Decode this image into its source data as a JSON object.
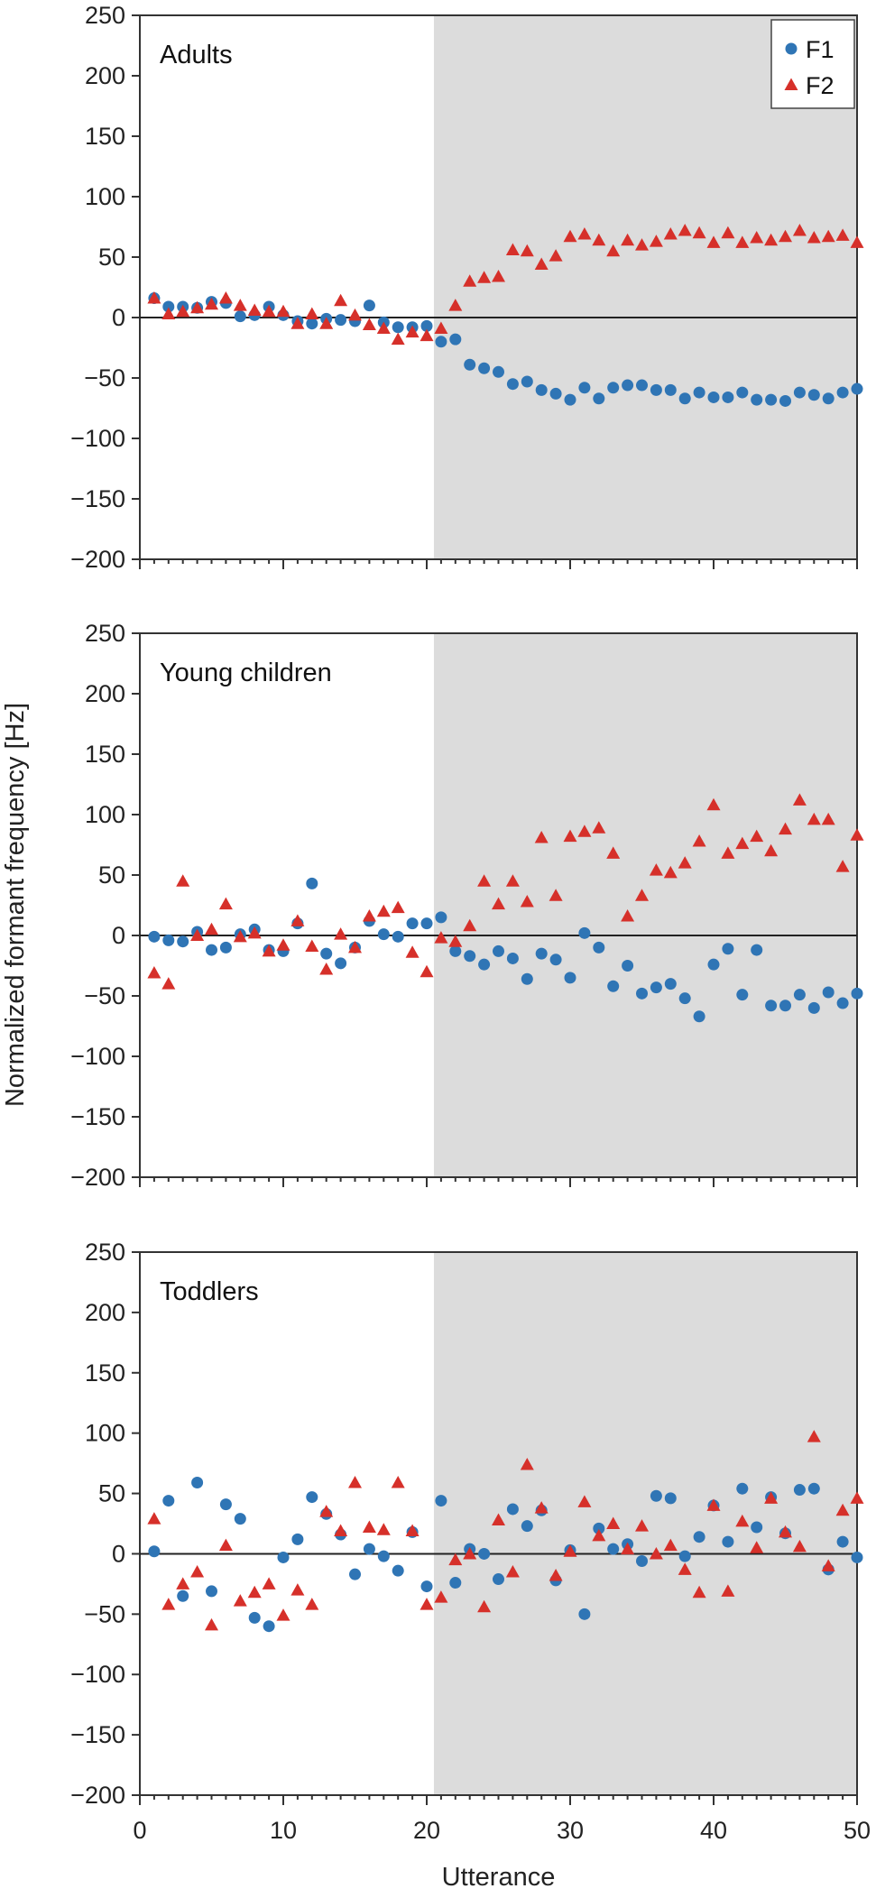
{
  "chart_data": [
    {
      "type": "scatter",
      "title": "Adults",
      "xlim": [
        0,
        50
      ],
      "ylim": [
        -200,
        250
      ],
      "yticks": [
        -200,
        -150,
        -100,
        -50,
        0,
        50,
        100,
        150,
        200,
        250
      ],
      "yticklabels": [
        "−200",
        "−150",
        "−100",
        "−50",
        "0",
        "50",
        "100",
        "150",
        "200",
        "250"
      ],
      "shaded_x_range": [
        20.5,
        50
      ],
      "zero_line": true,
      "legend": {
        "placement": "top-right",
        "entries": [
          "F1",
          "F2"
        ]
      },
      "series": [
        {
          "name": "F1",
          "color": "#2f75b5",
          "marker": "circle",
          "x": [
            1,
            2,
            3,
            4,
            5,
            6,
            7,
            8,
            9,
            10,
            11,
            12,
            13,
            14,
            15,
            16,
            17,
            18,
            19,
            20,
            21,
            22,
            23,
            24,
            25,
            26,
            27,
            28,
            29,
            30,
            31,
            32,
            33,
            34,
            35,
            36,
            37,
            38,
            39,
            40,
            41,
            42,
            43,
            44,
            45,
            46,
            47,
            48,
            49,
            50
          ],
          "y": [
            16,
            9,
            9,
            8,
            13,
            12,
            1,
            2,
            9,
            2,
            -3,
            -5,
            -1,
            -2,
            -3,
            10,
            -4,
            -8,
            -8,
            -7,
            -20,
            -18,
            -39,
            -42,
            -45,
            -55,
            -53,
            -60,
            -63,
            -68,
            -58,
            -67,
            -58,
            -56,
            -56,
            -60,
            -60,
            -67,
            -62,
            -66,
            -66,
            -62,
            -68,
            -68,
            -69,
            -62,
            -64,
            -67,
            -62,
            -59
          ]
        },
        {
          "name": "F2",
          "color": "#d6302a",
          "marker": "triangle",
          "x": [
            1,
            2,
            3,
            4,
            5,
            6,
            7,
            8,
            9,
            10,
            11,
            12,
            13,
            14,
            15,
            16,
            17,
            18,
            19,
            20,
            21,
            22,
            23,
            24,
            25,
            26,
            27,
            28,
            29,
            30,
            31,
            32,
            33,
            34,
            35,
            36,
            37,
            38,
            39,
            40,
            41,
            42,
            43,
            44,
            45,
            46,
            47,
            48,
            49,
            50
          ],
          "y": [
            16,
            3,
            5,
            8,
            11,
            16,
            10,
            6,
            5,
            5,
            -5,
            3,
            -5,
            14,
            2,
            -6,
            -9,
            -18,
            -12,
            -15,
            -9,
            10,
            30,
            33,
            34,
            56,
            55,
            44,
            51,
            67,
            69,
            64,
            55,
            64,
            60,
            63,
            69,
            72,
            70,
            62,
            70,
            62,
            66,
            64,
            67,
            72,
            66,
            67,
            68,
            62
          ]
        }
      ]
    },
    {
      "type": "scatter",
      "title": "Young children",
      "xlim": [
        0,
        50
      ],
      "ylim": [
        -200,
        250
      ],
      "yticks": [
        -200,
        -150,
        -100,
        -50,
        0,
        50,
        100,
        150,
        200,
        250
      ],
      "yticklabels": [
        "−200",
        "−150",
        "−100",
        "−50",
        "0",
        "50",
        "100",
        "150",
        "200",
        "250"
      ],
      "shaded_x_range": [
        20.5,
        50
      ],
      "zero_line": true,
      "ylabel": "Normalized formant frequency [Hz]",
      "series": [
        {
          "name": "F1",
          "color": "#2f75b5",
          "marker": "circle",
          "x": [
            1,
            2,
            3,
            4,
            5,
            6,
            7,
            8,
            9,
            10,
            11,
            12,
            13,
            14,
            15,
            16,
            17,
            18,
            19,
            20,
            21,
            22,
            23,
            24,
            25,
            26,
            27,
            28,
            29,
            30,
            31,
            32,
            33,
            34,
            35,
            36,
            37,
            38,
            39,
            40,
            41,
            42,
            43,
            44,
            45,
            46,
            47,
            48,
            49,
            50
          ],
          "y": [
            -1,
            -4,
            -5,
            3,
            -12,
            -10,
            1,
            5,
            -12,
            -13,
            10,
            43,
            -15,
            -23,
            -10,
            12,
            1,
            -1,
            10,
            10,
            15,
            -13,
            -17,
            -24,
            -13,
            -19,
            -36,
            -15,
            -20,
            -35,
            2,
            -10,
            -42,
            -25,
            -48,
            -43,
            -40,
            -52,
            -67,
            -24,
            -11,
            -49,
            -12,
            -58,
            -58,
            -49,
            -60,
            -47,
            -56,
            -48
          ]
        },
        {
          "name": "F2",
          "color": "#d6302a",
          "marker": "triangle",
          "x": [
            1,
            2,
            3,
            4,
            5,
            6,
            7,
            8,
            9,
            10,
            11,
            12,
            13,
            14,
            15,
            16,
            17,
            18,
            19,
            20,
            21,
            22,
            23,
            24,
            25,
            26,
            27,
            28,
            29,
            30,
            31,
            32,
            33,
            34,
            35,
            36,
            37,
            38,
            39,
            40,
            41,
            42,
            43,
            44,
            45,
            46,
            47,
            48,
            49,
            50
          ],
          "y": [
            -31,
            -40,
            45,
            0,
            5,
            26,
            -1,
            2,
            -13,
            -8,
            12,
            -9,
            -28,
            1,
            -10,
            16,
            20,
            23,
            -14,
            -30,
            -2,
            -5,
            8,
            45,
            26,
            45,
            28,
            81,
            33,
            82,
            86,
            89,
            68,
            16,
            33,
            54,
            52,
            60,
            78,
            108,
            68,
            76,
            82,
            70,
            88,
            112,
            96,
            96,
            57,
            83
          ]
        }
      ]
    },
    {
      "type": "scatter",
      "title": "Toddlers",
      "xlabel": "Utterance",
      "xlim": [
        0,
        50
      ],
      "xticks": [
        0,
        10,
        20,
        30,
        40,
        50
      ],
      "ylim": [
        -200,
        250
      ],
      "yticks": [
        -200,
        -150,
        -100,
        -50,
        0,
        50,
        100,
        150,
        200,
        250
      ],
      "yticklabels": [
        "−200",
        "−150",
        "−100",
        "−50",
        "0",
        "50",
        "100",
        "150",
        "200",
        "250"
      ],
      "shaded_x_range": [
        20.5,
        50
      ],
      "zero_line": true,
      "series": [
        {
          "name": "F1",
          "color": "#2f75b5",
          "marker": "circle",
          "x": [
            1,
            2,
            3,
            4,
            5,
            6,
            7,
            8,
            9,
            10,
            11,
            12,
            13,
            14,
            15,
            16,
            17,
            18,
            19,
            20,
            21,
            22,
            23,
            24,
            25,
            26,
            27,
            28,
            29,
            30,
            31,
            32,
            33,
            34,
            35,
            36,
            37,
            38,
            39,
            40,
            41,
            42,
            43,
            44,
            45,
            46,
            47,
            48,
            49,
            50
          ],
          "y": [
            2,
            44,
            -35,
            59,
            -31,
            41,
            29,
            -53,
            -60,
            -3,
            12,
            47,
            33,
            16,
            -17,
            4,
            -2,
            -14,
            18,
            -27,
            44,
            -24,
            4,
            0,
            -21,
            37,
            23,
            36,
            -22,
            3,
            -50,
            21,
            4,
            8,
            -6,
            48,
            46,
            -2,
            14,
            40,
            10,
            54,
            22,
            47,
            17,
            53,
            54,
            -13,
            10,
            -3
          ]
        },
        {
          "name": "F2",
          "color": "#d6302a",
          "marker": "triangle",
          "x": [
            1,
            2,
            3,
            4,
            5,
            6,
            7,
            8,
            9,
            10,
            11,
            12,
            13,
            14,
            15,
            16,
            17,
            18,
            19,
            20,
            21,
            22,
            23,
            24,
            25,
            26,
            27,
            28,
            29,
            30,
            31,
            32,
            33,
            34,
            35,
            36,
            37,
            38,
            39,
            40,
            41,
            42,
            43,
            44,
            45,
            46,
            47,
            48,
            49,
            50
          ],
          "y": [
            29,
            -42,
            -25,
            -15,
            -59,
            7,
            -39,
            -32,
            -25,
            -51,
            -30,
            -42,
            35,
            19,
            59,
            22,
            20,
            59,
            19,
            -42,
            -36,
            -5,
            0,
            -44,
            28,
            -15,
            74,
            38,
            -18,
            2,
            43,
            15,
            25,
            4,
            23,
            0,
            7,
            -13,
            -32,
            40,
            -31,
            27,
            5,
            46,
            18,
            6,
            97,
            -10,
            36,
            46
          ]
        }
      ]
    }
  ]
}
